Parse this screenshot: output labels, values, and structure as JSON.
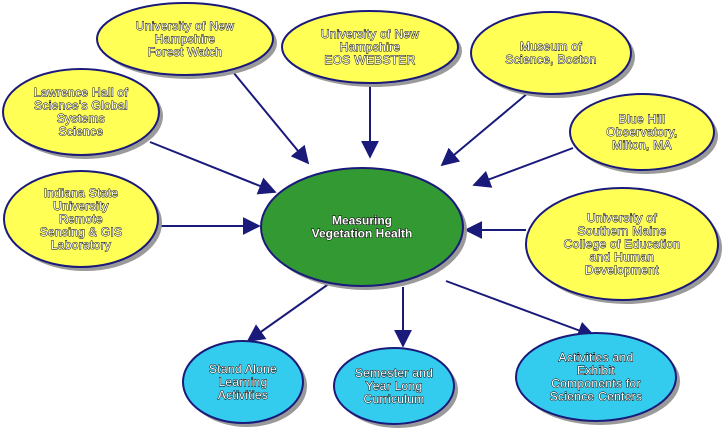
{
  "center": {
    "lines": [
      "Measuring",
      "Vegetation Health"
    ]
  },
  "partners": [
    {
      "id": "unh-forest-watch",
      "lines": [
        "University of New",
        "Hampshire",
        "Forest Watch"
      ]
    },
    {
      "id": "unh-eos-webster",
      "lines": [
        "University of New",
        "Hampshire",
        "EOS WEBSTER"
      ]
    },
    {
      "id": "museum-of-science",
      "lines": [
        "Museum of",
        "Science, Boston"
      ]
    },
    {
      "id": "lawrence-hall",
      "lines": [
        "Lawrence Hall of",
        "Science's Global",
        "Systems",
        "Science"
      ]
    },
    {
      "id": "blue-hill",
      "lines": [
        "Blue Hill",
        "Observatory,",
        "Milton, MA"
      ]
    },
    {
      "id": "indiana-state",
      "lines": [
        "Indiana State",
        "University",
        "Remote",
        "Sensing & GIS",
        "Laboratory"
      ]
    },
    {
      "id": "usm-education",
      "lines": [
        "University of",
        "Southern Maine",
        "College of Education",
        "and Human",
        "Development"
      ]
    }
  ],
  "outputs": [
    {
      "id": "stand-alone",
      "lines": [
        "Stand Alone",
        "Learning",
        "Activities"
      ]
    },
    {
      "id": "semester",
      "lines": [
        "Semester and",
        "Year Long",
        "Curriculum"
      ]
    },
    {
      "id": "exhibit",
      "lines": [
        "Activities and",
        "Exhibit",
        "Components for",
        "Science Centers"
      ]
    }
  ],
  "colors": {
    "partner_fill": "#ffff55",
    "center_fill": "#339933",
    "output_fill": "#33ccee",
    "arrow": "#1a1a7a",
    "outline": "#1a1a7a",
    "shadow": "#9a9a9a"
  }
}
